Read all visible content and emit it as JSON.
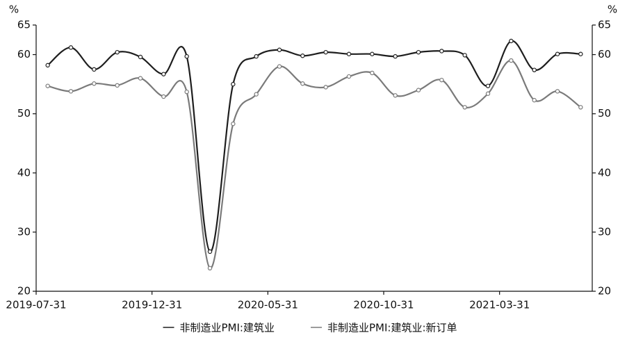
{
  "chart_data": {
    "type": "line",
    "ylabel": "%",
    "y2label": "%",
    "categories": [
      "2019-07-31",
      null,
      null,
      null,
      null,
      "2019-12-31",
      null,
      null,
      null,
      null,
      "2020-05-31",
      null,
      null,
      null,
      null,
      "2020-10-31",
      null,
      null,
      null,
      null,
      "2021-03-31",
      null,
      null,
      null
    ],
    "series": [
      {
        "name": "非制造业PMI:建筑业",
        "color": "#1e1e1e",
        "values": [
          58.2,
          61.2,
          57.5,
          60.4,
          59.6,
          56.7,
          59.7,
          26.7,
          55.0,
          59.7,
          60.8,
          59.8,
          60.4,
          60.1,
          60.1,
          59.7,
          60.4,
          60.6,
          59.9,
          54.7,
          62.3,
          57.4,
          60.1,
          60.1
        ]
      },
      {
        "name": "非制造业PMI:建筑业:新订单",
        "color": "#7a7a7a",
        "values": [
          54.7,
          53.8,
          55.1,
          54.8,
          56.0,
          52.9,
          53.7,
          23.9,
          48.3,
          53.3,
          58.0,
          55.1,
          54.5,
          56.3,
          56.9,
          53.1,
          54.0,
          55.7,
          51.1,
          53.4,
          59.0,
          52.3,
          53.8,
          51.1
        ]
      }
    ],
    "ylim": [
      20,
      65
    ],
    "yticks": [
      20,
      30,
      40,
      50,
      60,
      65
    ],
    "y2lim": [
      20,
      65
    ],
    "y2ticks": [
      20,
      30,
      40,
      50,
      60,
      65
    ],
    "grid": false
  }
}
